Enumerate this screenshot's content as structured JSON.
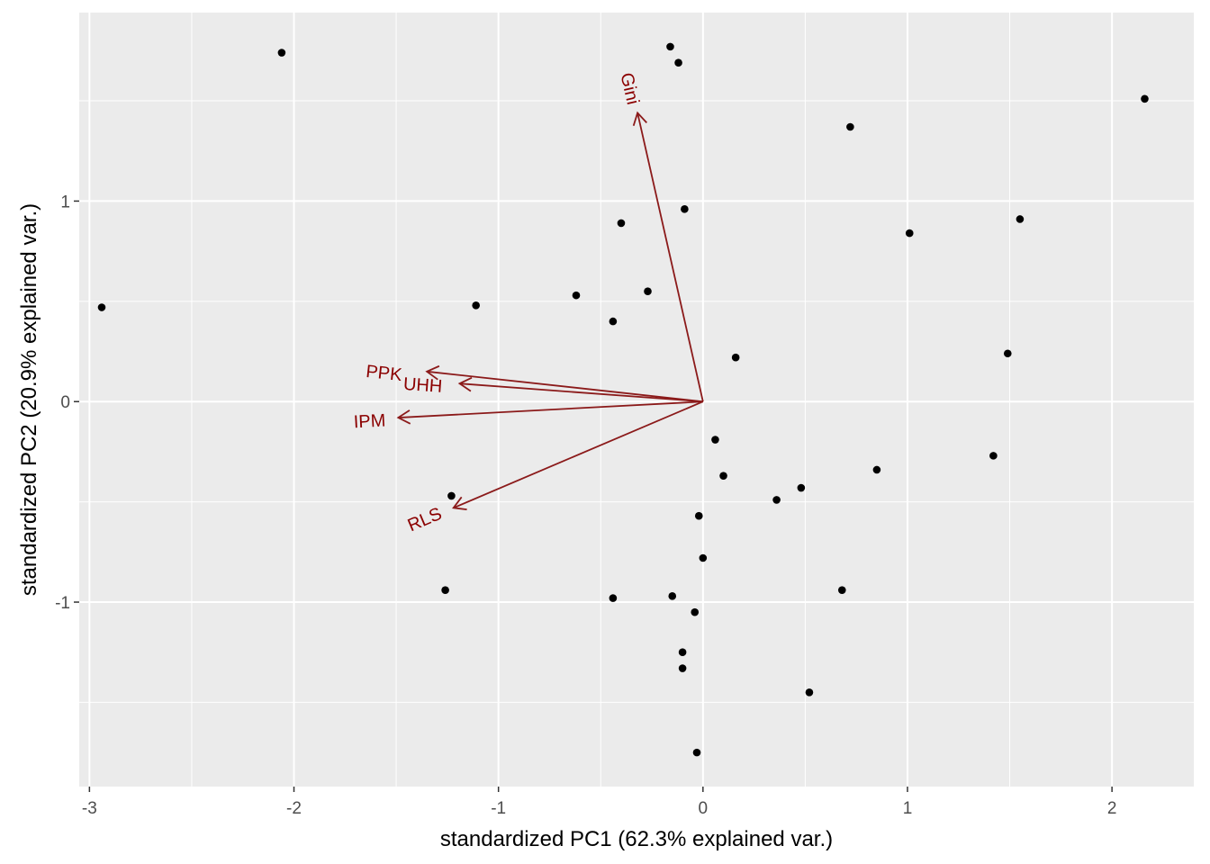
{
  "chart_data": {
    "type": "scatter",
    "title": "",
    "xlabel": "standardized PC1 (62.3% explained var.)",
    "ylabel": "standardized PC2 (20.9% explained var.)",
    "xlim": [
      -3.05,
      2.4
    ],
    "ylim": [
      -1.92,
      1.94
    ],
    "x_ticks": [
      -3,
      -2,
      -1,
      0,
      1,
      2
    ],
    "y_ticks": [
      -1,
      0,
      1
    ],
    "x_tick_labels": [
      "-3",
      "-2",
      "-1",
      "0",
      "1",
      "2"
    ],
    "y_tick_labels": [
      "-1",
      "0",
      "1"
    ],
    "grid": true,
    "legend": "none",
    "colors": {
      "panel_background": "#ebebeb",
      "grid_line": "#ffffff",
      "point": "#000000",
      "arrow": "#8b1a1a",
      "arrow_label": "#8b0000"
    },
    "points": [
      {
        "x": -2.94,
        "y": 0.47
      },
      {
        "x": -2.06,
        "y": 1.74
      },
      {
        "x": -1.11,
        "y": 0.48
      },
      {
        "x": -1.23,
        "y": -0.47
      },
      {
        "x": -1.26,
        "y": -0.94
      },
      {
        "x": -0.62,
        "y": 0.53
      },
      {
        "x": -0.4,
        "y": 0.89
      },
      {
        "x": -0.44,
        "y": 0.4
      },
      {
        "x": -0.27,
        "y": 0.55
      },
      {
        "x": -0.16,
        "y": 1.77
      },
      {
        "x": -0.12,
        "y": 1.69
      },
      {
        "x": -0.09,
        "y": 0.96
      },
      {
        "x": -0.44,
        "y": -0.98
      },
      {
        "x": -0.15,
        "y": -0.97
      },
      {
        "x": -0.04,
        "y": -1.05
      },
      {
        "x": -0.1,
        "y": -1.25
      },
      {
        "x": -0.1,
        "y": -1.33
      },
      {
        "x": -0.03,
        "y": -1.75
      },
      {
        "x": -0.02,
        "y": -0.57
      },
      {
        "x": 0.0,
        "y": -0.78
      },
      {
        "x": 0.06,
        "y": -0.19
      },
      {
        "x": 0.1,
        "y": -0.37
      },
      {
        "x": 0.16,
        "y": 0.22
      },
      {
        "x": 0.36,
        "y": -0.49
      },
      {
        "x": 0.48,
        "y": -0.43
      },
      {
        "x": 0.52,
        "y": -1.45
      },
      {
        "x": 0.68,
        "y": -0.94
      },
      {
        "x": 0.72,
        "y": 1.37
      },
      {
        "x": 0.85,
        "y": -0.34
      },
      {
        "x": 1.01,
        "y": 0.84
      },
      {
        "x": 1.42,
        "y": -0.27
      },
      {
        "x": 1.49,
        "y": 0.24
      },
      {
        "x": 1.55,
        "y": 0.91
      },
      {
        "x": 2.16,
        "y": 1.51
      }
    ],
    "loadings": [
      {
        "name": "Gini",
        "x": -0.32,
        "y": 1.44,
        "label_x": -0.36,
        "label_y": 1.56,
        "angle": 77
      },
      {
        "name": "PPK",
        "x": -1.35,
        "y": 0.15,
        "label_x": -1.56,
        "label_y": 0.14,
        "angle": 6
      },
      {
        "name": "UHH",
        "x": -1.19,
        "y": 0.09,
        "label_x": -1.37,
        "label_y": 0.08,
        "angle": 4
      },
      {
        "name": "IPM",
        "x": -1.49,
        "y": -0.08,
        "label_x": -1.63,
        "label_y": -0.1,
        "angle": -3
      },
      {
        "name": "RLS",
        "x": -1.22,
        "y": -0.53,
        "label_x": -1.36,
        "label_y": -0.59,
        "angle": -23
      }
    ]
  }
}
